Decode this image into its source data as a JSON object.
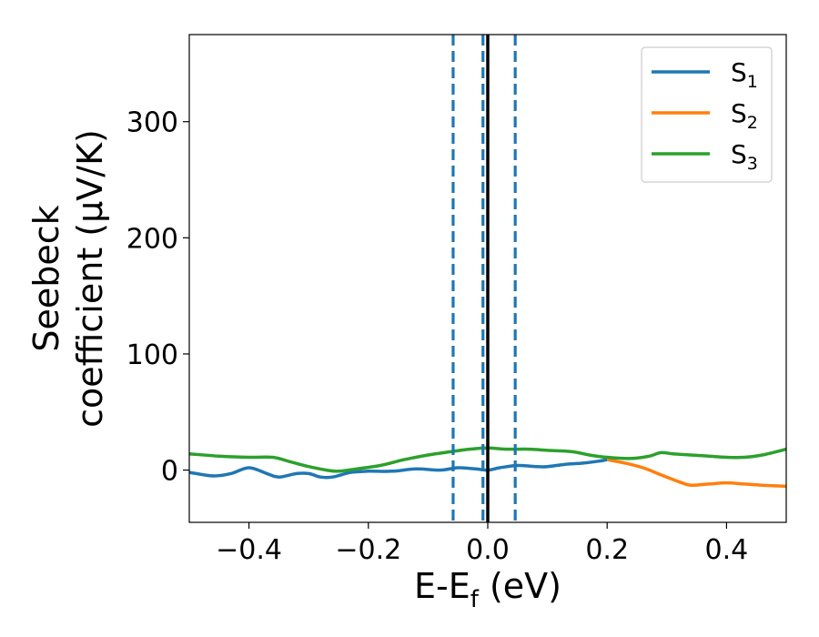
{
  "chart_data": {
    "type": "line",
    "title": "",
    "xlabel": "E-E_f (eV)",
    "xlabel_main": "E-E",
    "xlabel_sub": "f",
    "xlabel_tail": " (eV)",
    "ylabel_line1": "Seebeck",
    "ylabel_line2": "coefficient  (μV/K)",
    "xlim": [
      -0.5,
      0.5
    ],
    "ylim": [
      -45,
      375
    ],
    "xticks": [
      -0.4,
      -0.2,
      0.0,
      0.2,
      0.4
    ],
    "xtick_labels": [
      "−0.4",
      "−0.2",
      "0.0",
      "0.2",
      "0.4"
    ],
    "yticks": [
      0,
      100,
      200,
      300
    ],
    "ytick_labels": [
      "0",
      "100",
      "200",
      "300"
    ],
    "grid": false,
    "legend_position": "top-right",
    "vlines": [
      {
        "x": -0.058,
        "style": "dashed",
        "color": "#1f77b4"
      },
      {
        "x": -0.008,
        "style": "dashed",
        "color": "#1f77b4"
      },
      {
        "x": 0.046,
        "style": "dashed",
        "color": "#1f77b4"
      },
      {
        "x": 0.0,
        "style": "solid",
        "color": "#000000"
      }
    ],
    "series": [
      {
        "name": "S1",
        "name_main": "S",
        "name_sub": "1",
        "color": "#1f77b4",
        "x": [
          -0.5,
          -0.46,
          -0.43,
          -0.4,
          -0.37,
          -0.35,
          -0.32,
          -0.3,
          -0.28,
          -0.26,
          -0.23,
          -0.2,
          -0.16,
          -0.12,
          -0.08,
          -0.05,
          -0.02,
          0.0,
          0.02,
          0.05,
          0.08,
          0.1,
          0.13,
          0.16,
          0.19,
          0.2
        ],
        "y": [
          -2,
          -5,
          -3,
          2,
          -3,
          -6,
          -3,
          -3,
          -6,
          -6,
          -2,
          -1,
          -1,
          1,
          0,
          2,
          1,
          0,
          2,
          4,
          3,
          3,
          5,
          6,
          8,
          9
        ]
      },
      {
        "name": "S2",
        "name_main": "S",
        "name_sub": "2",
        "color": "#ff7f0e",
        "x": [
          0.2,
          0.23,
          0.26,
          0.29,
          0.32,
          0.34,
          0.37,
          0.4,
          0.43,
          0.46,
          0.5
        ],
        "y": [
          9,
          6,
          2,
          -4,
          -10,
          -13,
          -12,
          -11,
          -12,
          -13,
          -14
        ]
      },
      {
        "name": "S3",
        "name_main": "S",
        "name_sub": "3",
        "color": "#2ca02c",
        "x": [
          -0.5,
          -0.45,
          -0.4,
          -0.36,
          -0.33,
          -0.3,
          -0.27,
          -0.25,
          -0.22,
          -0.18,
          -0.14,
          -0.1,
          -0.06,
          -0.03,
          0.0,
          0.03,
          0.07,
          0.1,
          0.14,
          0.17,
          0.2,
          0.24,
          0.27,
          0.29,
          0.31,
          0.34,
          0.37,
          0.4,
          0.43,
          0.46,
          0.5
        ],
        "y": [
          14,
          12,
          11,
          11,
          7,
          3,
          0,
          -1,
          1,
          4,
          9,
          13,
          16,
          18,
          19,
          18,
          18,
          17,
          16,
          13,
          11,
          10,
          12,
          15,
          14,
          13,
          12,
          11,
          11,
          13,
          18
        ]
      }
    ]
  }
}
